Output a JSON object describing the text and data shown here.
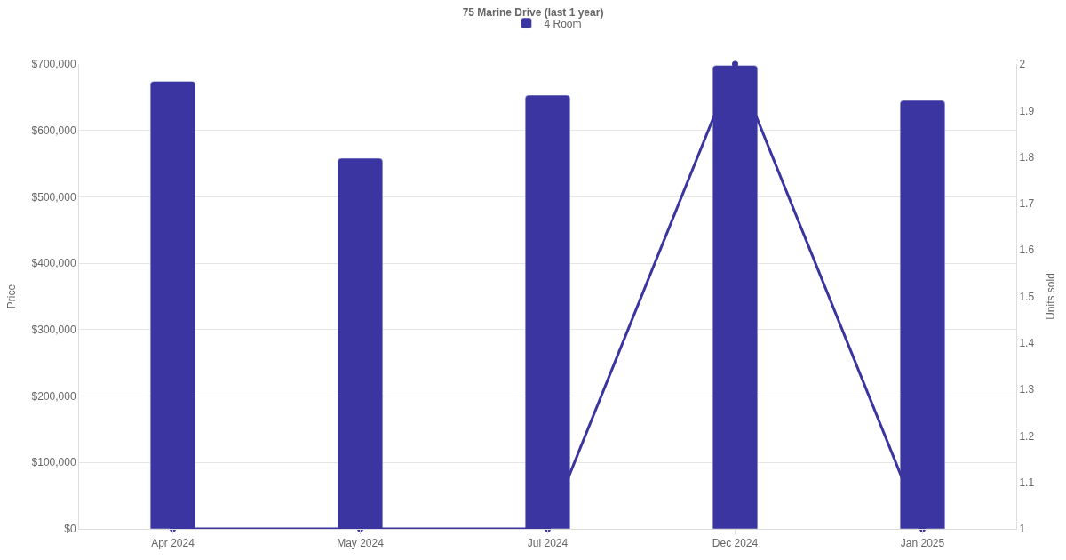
{
  "chart_data": {
    "type": "bar",
    "title": "75 Marine Drive (last 1 year)",
    "ylabel": "Price",
    "y2label": "Units sold",
    "categories": [
      "Apr 2024",
      "May 2024",
      "Jul 2024",
      "Dec 2024",
      "Jan 2025"
    ],
    "series": [
      {
        "name": "4 Room",
        "color": "#3a35a0",
        "values": [
          674000,
          558000,
          653000,
          698000,
          645000
        ]
      },
      {
        "type": "line",
        "axis": "y2",
        "color": "#3a35a0",
        "values": [
          1,
          1,
          1,
          2,
          1
        ]
      }
    ],
    "ylim": [
      0,
      700000
    ],
    "yticks": [
      {
        "value": 0,
        "label": "$0"
      },
      {
        "value": 100000,
        "label": "$100,000"
      },
      {
        "value": 200000,
        "label": "$200,000"
      },
      {
        "value": 300000,
        "label": "$300,000"
      },
      {
        "value": 400000,
        "label": "$400,000"
      },
      {
        "value": 500000,
        "label": "$500,000"
      },
      {
        "value": 600000,
        "label": "$600,000"
      },
      {
        "value": 700000,
        "label": "$700,000"
      }
    ],
    "y2lim": [
      1,
      2
    ],
    "y2ticks": [
      1,
      1.1,
      1.2,
      1.3,
      1.4,
      1.5,
      1.6,
      1.7,
      1.8,
      1.9,
      2
    ],
    "grid": "y",
    "legend": "top",
    "marker": "circle",
    "line_style": "solid"
  }
}
